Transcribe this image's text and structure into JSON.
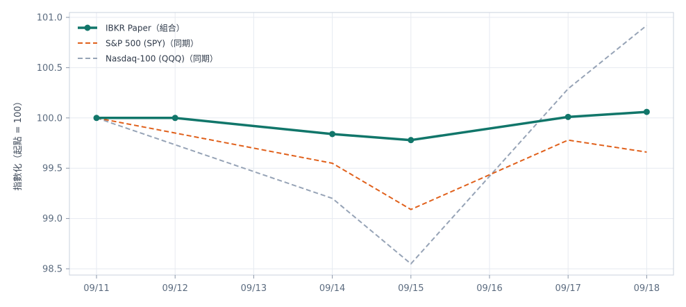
{
  "chart_data": {
    "type": "line",
    "title": "",
    "xlabel": "",
    "ylabel": "指數化（起點 = 100）",
    "categories": [
      "09/11",
      "09/12",
      "09/13",
      "09/14",
      "09/15",
      "09/16",
      "09/17",
      "09/18"
    ],
    "ylim": [
      98.5,
      101.0
    ],
    "yticks": [
      98.5,
      99.0,
      99.5,
      100.0,
      100.5,
      101.0
    ],
    "ytick_labels": [
      "98.5",
      "99.0",
      "99.5",
      "100.0",
      "100.5",
      "101.0"
    ],
    "grid": true,
    "legend_position": "top-left",
    "series": [
      {
        "name": "IBKR Paper（組合）",
        "color": "#11766a",
        "style": "solid",
        "markers": true,
        "points": [
          [
            "09/11",
            100.0
          ],
          [
            "09/12",
            100.0
          ],
          [
            "09/14",
            99.84
          ],
          [
            "09/15",
            99.78
          ],
          [
            "09/17",
            100.01
          ],
          [
            "09/18",
            100.06
          ]
        ]
      },
      {
        "name": "S&P 500 (SPY)（同期）",
        "color": "#e0601b",
        "style": "dashed",
        "markers": false,
        "points": [
          [
            "09/11",
            100.0
          ],
          [
            "09/14",
            99.55
          ],
          [
            "09/15",
            99.09
          ],
          [
            "09/17",
            99.78
          ],
          [
            "09/18",
            99.66
          ]
        ]
      },
      {
        "name": "Nasdaq-100 (QQQ)（同期）",
        "color": "#96a3b6",
        "style": "dashed",
        "markers": false,
        "points": [
          [
            "09/11",
            100.0
          ],
          [
            "09/14",
            99.2
          ],
          [
            "09/15",
            98.55
          ],
          [
            "09/17",
            100.29
          ],
          [
            "09/18",
            100.92
          ]
        ]
      }
    ]
  }
}
